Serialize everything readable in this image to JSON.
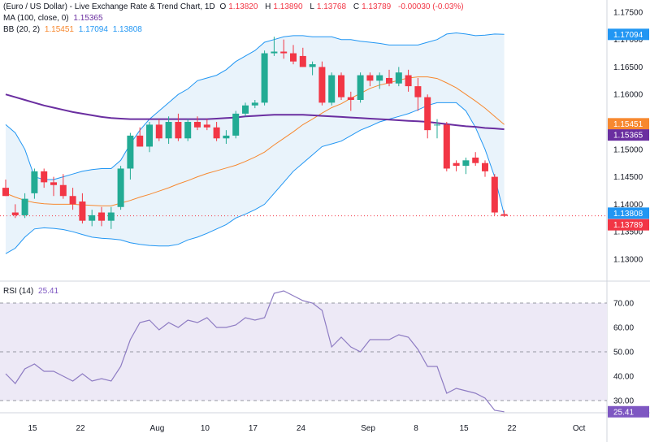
{
  "legend": {
    "title": "(Euro / US Dollar) - Live Exchange Rate & Trend Chart, 1D",
    "open_label": "O",
    "open": "1.13820",
    "high_label": "H",
    "high": "1.13890",
    "low_label": "L",
    "low": "1.13768",
    "close_label": "C",
    "close": "1.13789",
    "change": "-0.00030 (-0.03%)",
    "ma_label": "MA (100, close, 0)",
    "ma_value": "1.15365",
    "bb_label": "BB (20, 2)",
    "bb_basis": "1.15451",
    "bb_upper": "1.17094",
    "bb_lower": "1.13808",
    "rsi_label": "RSI (14)",
    "rsi_value": "25.41"
  },
  "colors": {
    "up": "#22ab94",
    "down": "#f23645",
    "ma": "#6a2ea0",
    "bb_basis": "#f7882f",
    "bb_band": "#2196f3",
    "bb_fill": "#e9f3fb",
    "rsi_line": "#8e7cc3",
    "rsi_fill": "#ede9f6",
    "last_price": "#f23645"
  },
  "chart_data": [
    {
      "type": "candlestick",
      "title": "(Euro / US Dollar) - Live Exchange Rate & Trend Chart, 1D",
      "ylim": [
        1.126,
        1.1772
      ],
      "y_ticks": [
        "1.13000",
        "1.13500",
        "1.14000",
        "1.14500",
        "1.15000",
        "1.15500",
        "1.16000",
        "1.16500",
        "1.17000",
        "1.17500"
      ],
      "x_tick_labels": [
        "15",
        "22",
        "Aug",
        "10",
        "17",
        "24",
        "Sep",
        "8",
        "15",
        "22",
        "Oct"
      ],
      "candles": [
        {
          "open": 1.143,
          "high": 1.1445,
          "low": 1.1415,
          "close": 1.1415
        },
        {
          "open": 1.1385,
          "high": 1.14,
          "low": 1.1375,
          "close": 1.138
        },
        {
          "open": 1.138,
          "high": 1.142,
          "low": 1.1375,
          "close": 1.141
        },
        {
          "open": 1.142,
          "high": 1.1465,
          "low": 1.141,
          "close": 1.146
        },
        {
          "open": 1.146,
          "high": 1.1465,
          "low": 1.143,
          "close": 1.144
        },
        {
          "open": 1.144,
          "high": 1.145,
          "low": 1.1415,
          "close": 1.1435
        },
        {
          "open": 1.1435,
          "high": 1.1455,
          "low": 1.141,
          "close": 1.1415
        },
        {
          "open": 1.1415,
          "high": 1.143,
          "low": 1.139,
          "close": 1.14
        },
        {
          "open": 1.1405,
          "high": 1.142,
          "low": 1.1365,
          "close": 1.137
        },
        {
          "open": 1.137,
          "high": 1.139,
          "low": 1.136,
          "close": 1.138
        },
        {
          "open": 1.1385,
          "high": 1.1395,
          "low": 1.136,
          "close": 1.137
        },
        {
          "open": 1.137,
          "high": 1.1395,
          "low": 1.1355,
          "close": 1.1385
        },
        {
          "open": 1.1395,
          "high": 1.147,
          "low": 1.139,
          "close": 1.1465
        },
        {
          "open": 1.1465,
          "high": 1.153,
          "low": 1.1445,
          "close": 1.1525
        },
        {
          "open": 1.1525,
          "high": 1.154,
          "low": 1.1505,
          "close": 1.1505
        },
        {
          "open": 1.1505,
          "high": 1.155,
          "low": 1.1495,
          "close": 1.1545
        },
        {
          "open": 1.1545,
          "high": 1.1555,
          "low": 1.1515,
          "close": 1.152
        },
        {
          "open": 1.152,
          "high": 1.156,
          "low": 1.151,
          "close": 1.155
        },
        {
          "open": 1.155,
          "high": 1.1565,
          "low": 1.1515,
          "close": 1.152
        },
        {
          "open": 1.152,
          "high": 1.1555,
          "low": 1.1515,
          "close": 1.155
        },
        {
          "open": 1.155,
          "high": 1.156,
          "low": 1.1535,
          "close": 1.154
        },
        {
          "open": 1.1545,
          "high": 1.1555,
          "low": 1.1535,
          "close": 1.154
        },
        {
          "open": 1.154,
          "high": 1.155,
          "low": 1.1515,
          "close": 1.152
        },
        {
          "open": 1.152,
          "high": 1.1535,
          "low": 1.151,
          "close": 1.1525
        },
        {
          "open": 1.1525,
          "high": 1.157,
          "low": 1.152,
          "close": 1.1565
        },
        {
          "open": 1.1565,
          "high": 1.1585,
          "low": 1.156,
          "close": 1.158
        },
        {
          "open": 1.158,
          "high": 1.159,
          "low": 1.1575,
          "close": 1.1585
        },
        {
          "open": 1.1585,
          "high": 1.168,
          "low": 1.158,
          "close": 1.1675
        },
        {
          "open": 1.1675,
          "high": 1.1705,
          "low": 1.167,
          "close": 1.1678
        },
        {
          "open": 1.1678,
          "high": 1.17,
          "low": 1.1665,
          "close": 1.1675
        },
        {
          "open": 1.1675,
          "high": 1.169,
          "low": 1.1655,
          "close": 1.166
        },
        {
          "open": 1.167,
          "high": 1.1685,
          "low": 1.165,
          "close": 1.165
        },
        {
          "open": 1.165,
          "high": 1.166,
          "low": 1.1635,
          "close": 1.1655
        },
        {
          "open": 1.165,
          "high": 1.166,
          "low": 1.158,
          "close": 1.1585
        },
        {
          "open": 1.1585,
          "high": 1.164,
          "low": 1.158,
          "close": 1.1635
        },
        {
          "open": 1.1635,
          "high": 1.164,
          "low": 1.159,
          "close": 1.1595
        },
        {
          "open": 1.1595,
          "high": 1.1605,
          "low": 1.157,
          "close": 1.159
        },
        {
          "open": 1.159,
          "high": 1.164,
          "low": 1.1585,
          "close": 1.1635
        },
        {
          "open": 1.1635,
          "high": 1.164,
          "low": 1.1615,
          "close": 1.1625
        },
        {
          "open": 1.1625,
          "high": 1.164,
          "low": 1.161,
          "close": 1.1635
        },
        {
          "open": 1.163,
          "high": 1.1645,
          "low": 1.1615,
          "close": 1.162
        },
        {
          "open": 1.162,
          "high": 1.165,
          "low": 1.1615,
          "close": 1.164
        },
        {
          "open": 1.1635,
          "high": 1.1645,
          "low": 1.1605,
          "close": 1.1615
        },
        {
          "open": 1.1615,
          "high": 1.163,
          "low": 1.157,
          "close": 1.1595
        },
        {
          "open": 1.1595,
          "high": 1.16,
          "low": 1.152,
          "close": 1.1535
        },
        {
          "open": 1.1545,
          "high": 1.1555,
          "low": 1.152,
          "close": 1.1545
        },
        {
          "open": 1.1545,
          "high": 1.155,
          "low": 1.146,
          "close": 1.1465
        },
        {
          "open": 1.1475,
          "high": 1.148,
          "low": 1.146,
          "close": 1.147
        },
        {
          "open": 1.147,
          "high": 1.1485,
          "low": 1.1455,
          "close": 1.148
        },
        {
          "open": 1.1485,
          "high": 1.1495,
          "low": 1.147,
          "close": 1.1475
        },
        {
          "open": 1.1475,
          "high": 1.148,
          "low": 1.145,
          "close": 1.146
        },
        {
          "open": 1.145,
          "high": 1.1455,
          "low": 1.138,
          "close": 1.1385
        },
        {
          "open": 1.1382,
          "high": 1.1389,
          "low": 1.13768,
          "close": 1.13789
        }
      ],
      "series": [
        {
          "name": "MA (100, close, 0)",
          "values": [
            1.16,
            1.1595,
            1.159,
            1.1585,
            1.158,
            1.1576,
            1.1572,
            1.1568,
            1.1565,
            1.1562,
            1.1559,
            1.1557,
            1.1556,
            1.1555,
            1.1555,
            1.1555,
            1.1555,
            1.1555,
            1.1555,
            1.1555,
            1.1555,
            1.1555,
            1.1556,
            1.1557,
            1.1558,
            1.156,
            1.1561,
            1.1562,
            1.1563,
            1.1563,
            1.1563,
            1.1563,
            1.1562,
            1.1561,
            1.156,
            1.1559,
            1.1558,
            1.1557,
            1.1556,
            1.1555,
            1.1554,
            1.1553,
            1.1552,
            1.1551,
            1.155,
            1.1548,
            1.1546,
            1.1544,
            1.1542,
            1.1541,
            1.1539,
            1.1538,
            1.15365
          ]
        },
        {
          "name": "BB basis",
          "values": [
            1.142,
            1.1413,
            1.1407,
            1.1403,
            1.1401,
            1.14,
            1.14,
            1.14,
            1.1399,
            1.1398,
            1.1397,
            1.1397,
            1.1402,
            1.1407,
            1.1413,
            1.1418,
            1.1424,
            1.143,
            1.1437,
            1.1443,
            1.145,
            1.1456,
            1.1461,
            1.1466,
            1.1471,
            1.1478,
            1.1486,
            1.1495,
            1.1508,
            1.152,
            1.1532,
            1.1545,
            1.1555,
            1.1566,
            1.1576,
            1.1583,
            1.1593,
            1.1602,
            1.1611,
            1.1617,
            1.1621,
            1.1626,
            1.163,
            1.1632,
            1.1632,
            1.1629,
            1.1621,
            1.1612,
            1.16,
            1.1588,
            1.1575,
            1.156,
            1.15451
          ]
        },
        {
          "name": "BB upper",
          "values": [
            1.1545,
            1.153,
            1.15,
            1.145,
            1.1445,
            1.1445,
            1.145,
            1.1455,
            1.146,
            1.1463,
            1.1465,
            1.1465,
            1.148,
            1.151,
            1.1535,
            1.1555,
            1.157,
            1.1585,
            1.16,
            1.161,
            1.1625,
            1.163,
            1.1635,
            1.1645,
            1.166,
            1.167,
            1.168,
            1.1695,
            1.17,
            1.1705,
            1.1707,
            1.1707,
            1.1705,
            1.1705,
            1.1705,
            1.17,
            1.17,
            1.1697,
            1.1695,
            1.1693,
            1.169,
            1.169,
            1.169,
            1.169,
            1.1695,
            1.17,
            1.171,
            1.1712,
            1.171,
            1.1707,
            1.1708,
            1.171,
            1.17094
          ]
        },
        {
          "name": "BB lower",
          "values": [
            1.131,
            1.132,
            1.134,
            1.1355,
            1.1357,
            1.1356,
            1.1354,
            1.135,
            1.1345,
            1.134,
            1.1338,
            1.1337,
            1.1335,
            1.133,
            1.1327,
            1.1325,
            1.1324,
            1.1324,
            1.1327,
            1.1335,
            1.134,
            1.1347,
            1.1355,
            1.1363,
            1.1375,
            1.1382,
            1.139,
            1.14,
            1.142,
            1.144,
            1.146,
            1.1475,
            1.149,
            1.1505,
            1.151,
            1.1515,
            1.1525,
            1.1535,
            1.1542,
            1.155,
            1.1555,
            1.156,
            1.1565,
            1.1572,
            1.158,
            1.1585,
            1.1585,
            1.1585,
            1.157,
            1.154,
            1.15,
            1.145,
            1.13808
          ]
        }
      ],
      "last_price_line": 1.13789
    },
    {
      "type": "line",
      "title": "RSI (14)",
      "ylim": [
        25,
        79
      ],
      "y_ticks": [
        "30.00",
        "40.00",
        "50.00",
        "60.00",
        "70.00"
      ],
      "bands": [
        30,
        50,
        70
      ],
      "series": [
        {
          "name": "RSI (14)",
          "values": [
            41,
            37,
            43,
            45,
            42,
            42,
            40,
            38,
            41,
            38,
            39,
            38,
            44,
            55,
            62,
            63,
            59,
            62,
            60,
            63,
            62,
            64,
            60,
            60,
            61,
            64,
            63,
            64,
            74,
            75,
            73,
            71,
            70,
            67,
            52,
            56,
            52,
            50,
            55,
            55,
            55,
            57,
            56,
            51,
            44,
            44,
            33,
            35,
            34,
            33,
            31,
            26,
            25.41
          ]
        }
      ]
    }
  ]
}
